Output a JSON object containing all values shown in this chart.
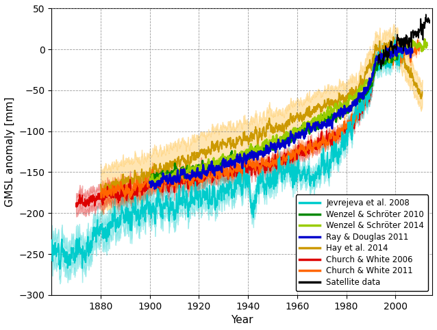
{
  "title": "",
  "xlabel": "Year",
  "ylabel": "GMSL anomaly [mm]",
  "xlim": [
    1860,
    2015
  ],
  "ylim": [
    -300,
    50
  ],
  "yticks": [
    -300,
    -250,
    -200,
    -150,
    -100,
    -50,
    0,
    50
  ],
  "xticks": [
    1880,
    1900,
    1920,
    1940,
    1960,
    1980,
    2000
  ],
  "background_color": "#ffffff",
  "series": {
    "jevrejeva": {
      "label": "Jevrejeva et al. 2008",
      "color": "#00CCCC",
      "unc_alpha": 0.3,
      "start_year": 1860,
      "end_year": 2002
    },
    "wenzel2010": {
      "label": "Wenzel & Schröter 2010",
      "color": "#008800",
      "start_year": 1900,
      "end_year": 2000
    },
    "wenzel2014": {
      "label": "Wenzel & Schröter 2014",
      "color": "#99CC00",
      "start_year": 1900,
      "end_year": 2012
    },
    "ray_douglas": {
      "label": "Ray & Douglas 2011",
      "color": "#0000CC",
      "start_year": 1900,
      "end_year": 2006
    },
    "hay2014": {
      "label": "Hay et al. 2014",
      "color": "#CC9900",
      "unc_color": "#FFCC66",
      "unc_alpha": 0.5,
      "start_year": 1880,
      "end_year": 2010
    },
    "church_white_2006": {
      "label": "Church & White 2006",
      "color": "#DD0000",
      "unc_alpha": 0.3,
      "start_year": 1870,
      "end_year": 2001
    },
    "church_white_2011": {
      "label": "Church & White 2011",
      "color": "#FF6600",
      "unc_alpha": 0.3,
      "start_year": 1880,
      "end_year": 2009
    },
    "satellite": {
      "label": "Satellite data",
      "color": "#000000",
      "start_year": 1993,
      "end_year": 2013
    }
  }
}
